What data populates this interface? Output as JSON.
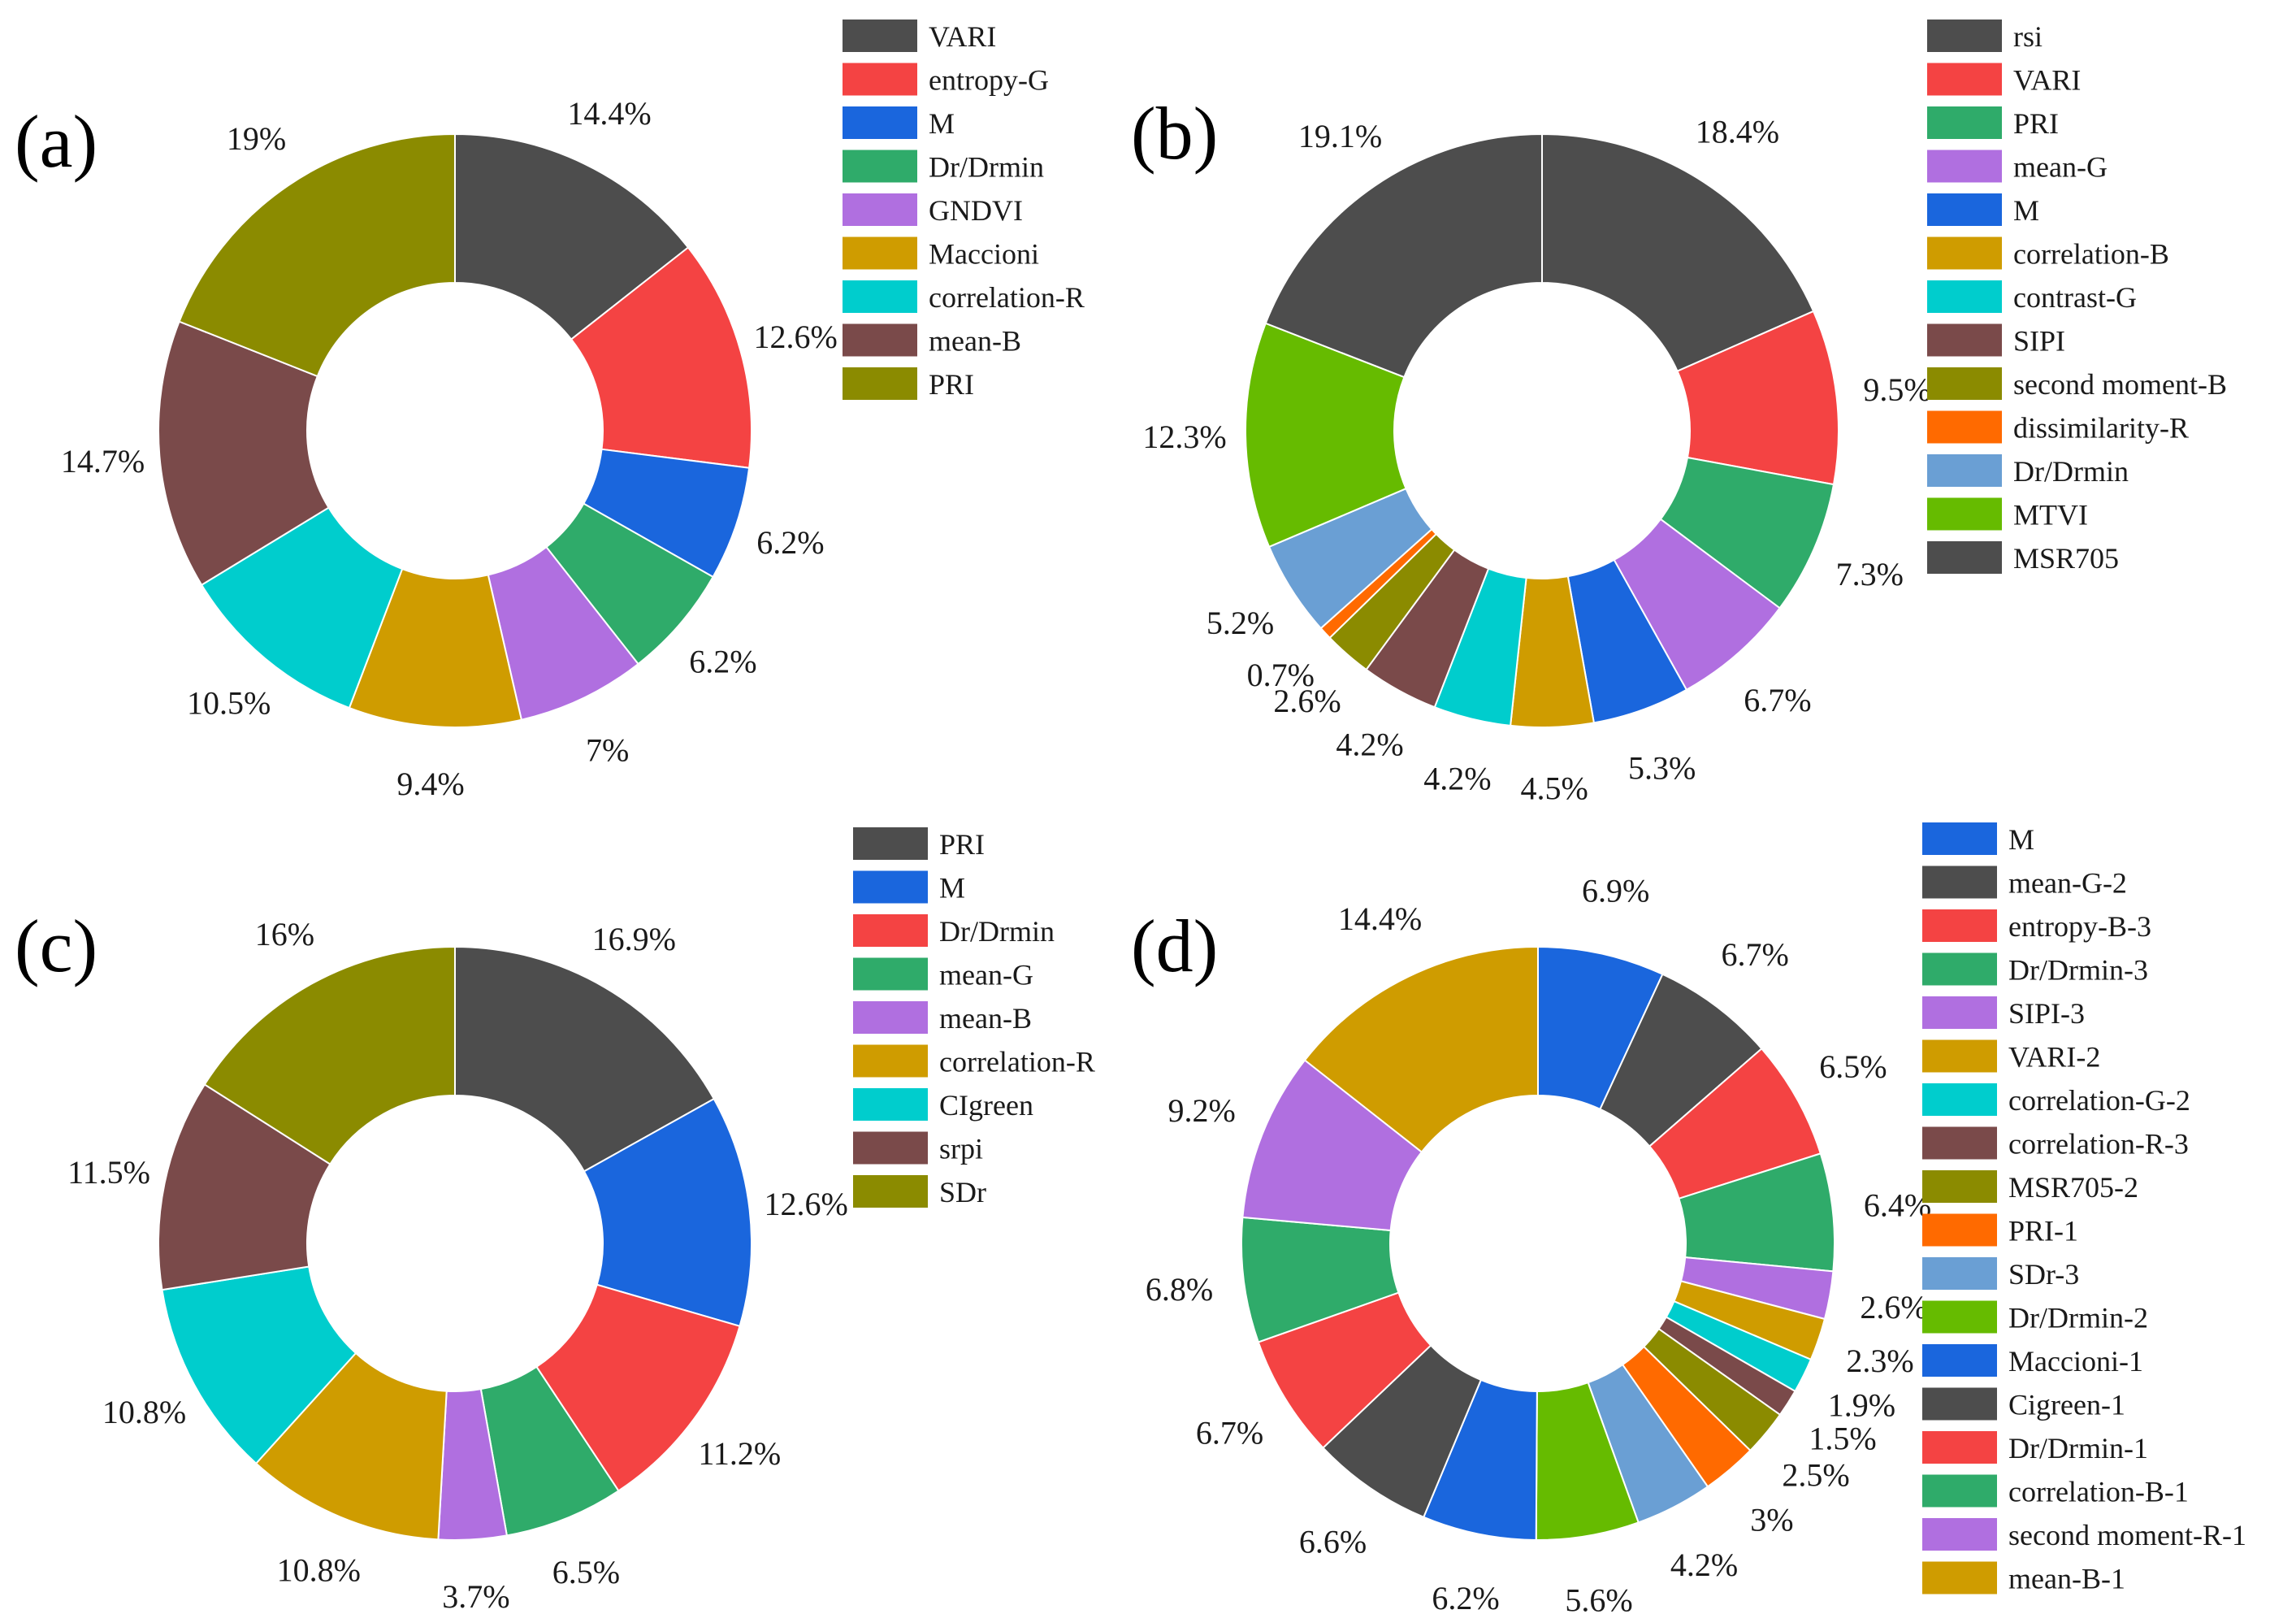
{
  "chart_data": [
    {
      "type": "pie",
      "variant": "donut",
      "panel": "(a)",
      "categories": [
        "VARI",
        "entropy-G",
        "M",
        "Dr/Drmin",
        "GNDVI",
        "Maccioni",
        "correlation-R",
        "mean-B",
        "PRI"
      ],
      "values": [
        14.4,
        12.6,
        6.2,
        6.2,
        7,
        9.4,
        10.5,
        14.7,
        19
      ],
      "labels": [
        "14.4%",
        "12.6%",
        "6.2%",
        "6.2%",
        "7%",
        "9.4%",
        "10.5%",
        "14.7%",
        "19%"
      ],
      "colors": [
        "#4d4d4d",
        "#f44343",
        "#1a66dd",
        "#2fab6a",
        "#b06fe0",
        "#cf9c00",
        "#00cdcd",
        "#7a4a4a",
        "#8b8b00"
      ],
      "legend": "right"
    },
    {
      "type": "pie",
      "variant": "donut",
      "panel": "(b)",
      "categories": [
        "rsi",
        "VARI",
        "PRI",
        "mean-G",
        "M",
        "correlation-B",
        "contrast-G",
        "SIPI",
        "second moment-B",
        "dissimilarity-R",
        "Dr/Drmin",
        "MTVI",
        "MSR705"
      ],
      "values": [
        18.4,
        9.5,
        7.3,
        6.7,
        5.3,
        4.5,
        4.2,
        4.2,
        2.6,
        0.7,
        5.2,
        12.3,
        19.1
      ],
      "labels": [
        "18.4%",
        "9.5%",
        "7.3%",
        "6.7%",
        "5.3%",
        "4.5%",
        "4.2%",
        "4.2%",
        "2.6%",
        "0.7%",
        "5.2%",
        "12.3%",
        "19.1%"
      ],
      "colors": [
        "#4d4d4d",
        "#f44343",
        "#2fab6a",
        "#b06fe0",
        "#1a66dd",
        "#cf9c00",
        "#00cdcd",
        "#7a4a4a",
        "#8b8b00",
        "#ff6a00",
        "#6a9fd4",
        "#66bb00",
        "#4d4d4d"
      ],
      "legend": "right"
    },
    {
      "type": "pie",
      "variant": "donut",
      "panel": "(c)",
      "categories": [
        "PRI",
        "M",
        "Dr/Drmin",
        "mean-G",
        "mean-B",
        "correlation-R",
        "CIgreen",
        "srpi",
        "SDr"
      ],
      "values": [
        16.9,
        12.6,
        11.2,
        6.5,
        3.7,
        10.8,
        10.8,
        11.5,
        16
      ],
      "labels": [
        "16.9%",
        "12.6%",
        "11.2%",
        "6.5%",
        "3.7%",
        "10.8%",
        "10.8%",
        "11.5%",
        "16%"
      ],
      "colors": [
        "#4d4d4d",
        "#1a66dd",
        "#f44343",
        "#2fab6a",
        "#b06fe0",
        "#cf9c00",
        "#00cdcd",
        "#7a4a4a",
        "#8b8b00"
      ],
      "legend": "right"
    },
    {
      "type": "pie",
      "variant": "donut",
      "panel": "(d)",
      "categories": [
        "M",
        "mean-G-2",
        "entropy-B-3",
        "Dr/Drmin-3",
        "SIPI-3",
        "VARI-2",
        "correlation-G-2",
        "correlation-R-3",
        "MSR705-2",
        "PRI-1",
        "SDr-3",
        "Dr/Drmin-2",
        "Maccioni-1",
        "Cigreen-1",
        "Dr/Drmin-1",
        "correlation-B-1",
        "second moment-R-1",
        "mean-B-1"
      ],
      "values": [
        6.9,
        6.7,
        6.5,
        6.4,
        2.6,
        2.3,
        1.9,
        1.5,
        2.5,
        3,
        4.2,
        5.6,
        6.2,
        6.6,
        6.7,
        6.8,
        9.2,
        14.4
      ],
      "labels": [
        "6.9%",
        "6.7%",
        "6.5%",
        "6.4%",
        "2.6%",
        "2.3%",
        "1.9%",
        "1.5%",
        "2.5%",
        "3%",
        "4.2%",
        "5.6%",
        "6.2%",
        "6.6%",
        "6.7%",
        "6.8%",
        "9.2%",
        "14.4%"
      ],
      "colors": [
        "#1a66dd",
        "#4d4d4d",
        "#f44343",
        "#2fab6a",
        "#b06fe0",
        "#cf9c00",
        "#00cdcd",
        "#7a4a4a",
        "#8b8b00",
        "#ff6a00",
        "#6a9fd4",
        "#66bb00",
        "#1a66dd",
        "#4d4d4d",
        "#f44343",
        "#2fab6a",
        "#b06fe0",
        "#cf9c00"
      ],
      "legend": "right"
    }
  ]
}
